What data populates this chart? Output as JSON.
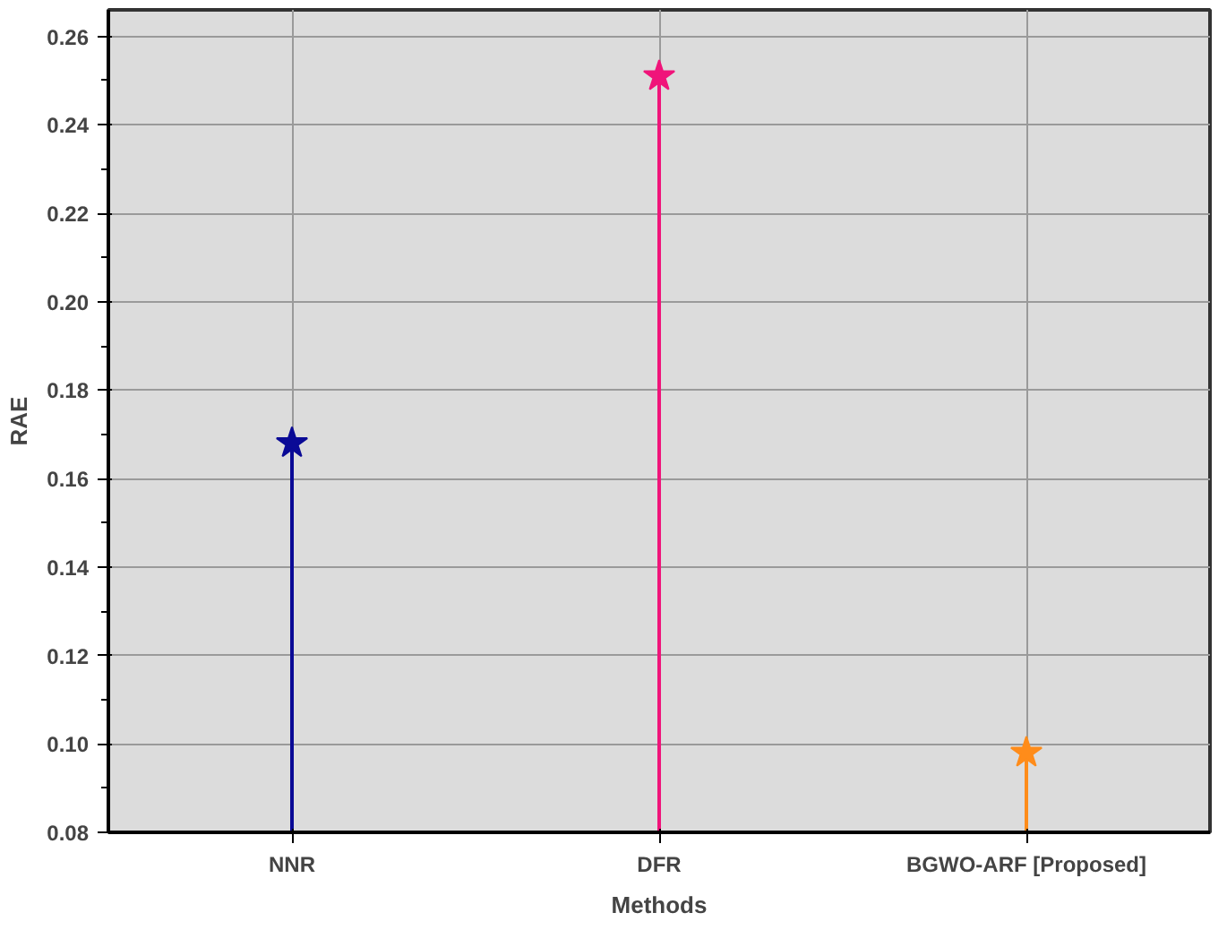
{
  "chart_data": {
    "type": "lollipop",
    "xlabel": "Methods",
    "ylabel": "RAE",
    "categories": [
      "NNR",
      "DFR",
      "BGWO-ARF [Proposed]"
    ],
    "values": [
      0.168,
      0.251,
      0.098
    ],
    "colors": [
      "#0a0a96",
      "#f0147a",
      "#ff8c1a"
    ],
    "ylim": [
      0.08,
      0.266
    ],
    "yticks": [
      0.08,
      {
        "value": 0.1,
        "label": "0.10"
      },
      0.12,
      0.14,
      0.16,
      0.18,
      {
        "value": 0.2,
        "label": "0.20"
      },
      0.22,
      0.24,
      0.26
    ],
    "grid": true,
    "marker": "star"
  }
}
